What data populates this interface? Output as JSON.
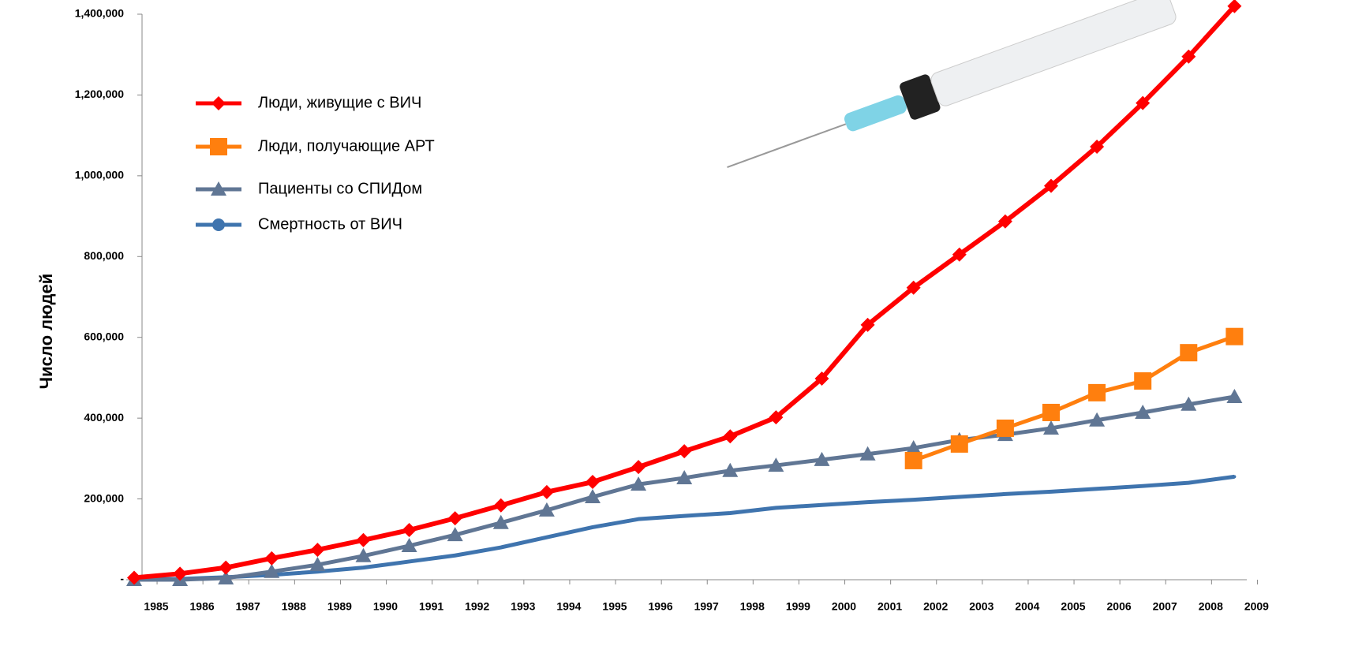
{
  "chart_data": {
    "type": "line",
    "y_label": "Число людей",
    "categories": [
      "1985",
      "1986",
      "1987",
      "1988",
      "1989",
      "1990",
      "1991",
      "1992",
      "1993",
      "1994",
      "1995",
      "1996",
      "1997",
      "1998",
      "1999",
      "2000",
      "2001",
      "2002",
      "2003",
      "2004",
      "2005",
      "2006",
      "2007",
      "2008",
      "2009"
    ],
    "ylim": [
      0,
      1400000
    ],
    "yticks": [
      {
        "value": 0,
        "label": "-"
      },
      {
        "value": 200000,
        "label": "200,000"
      },
      {
        "value": 400000,
        "label": "400,000"
      },
      {
        "value": 600000,
        "label": "600,000"
      },
      {
        "value": 800000,
        "label": "800,000"
      },
      {
        "value": 1000000,
        "label": "1,000,000"
      },
      {
        "value": 1200000,
        "label": "1,200,000"
      },
      {
        "value": 1400000,
        "label": "1,400,000"
      }
    ],
    "series": [
      {
        "name": "Люди, живущие с ВИЧ",
        "color": "#ff0000",
        "marker": "diamond",
        "values": [
          5000,
          15000,
          30000,
          53000,
          74000,
          98000,
          123000,
          152000,
          184000,
          217000,
          242000,
          279000,
          318000,
          355000,
          402000,
          498000,
          631000,
          723000,
          805000,
          887000,
          975000,
          1072000,
          1180000,
          1295000,
          1420000
        ]
      },
      {
        "name": "Люди, получающие АРТ",
        "color": "#ff7f0e",
        "marker": "square",
        "values": [
          null,
          null,
          null,
          null,
          null,
          null,
          null,
          null,
          null,
          null,
          null,
          null,
          null,
          null,
          null,
          null,
          null,
          295000,
          336000,
          375000,
          414000,
          463000,
          492000,
          562000,
          602000
        ]
      },
      {
        "name": "Пациенты со СПИДом",
        "color": "#607694",
        "marker": "triangle",
        "values": [
          0,
          0,
          4000,
          20000,
          37000,
          59000,
          84000,
          111000,
          141000,
          172000,
          205000,
          236000,
          252000,
          270000,
          283000,
          297000,
          311000,
          326000,
          346000,
          359000,
          375000,
          395000,
          414000,
          434000,
          453000
        ]
      },
      {
        "name": "Смертность от ВИЧ",
        "color": "#3f74ae",
        "marker": "circle",
        "values": [
          0,
          2000,
          6000,
          12000,
          20000,
          30000,
          45000,
          60000,
          80000,
          105000,
          130000,
          150000,
          158000,
          165000,
          178000,
          185000,
          192000,
          198000,
          205000,
          212000,
          218000,
          225000,
          232000,
          240000,
          255000
        ]
      }
    ]
  }
}
